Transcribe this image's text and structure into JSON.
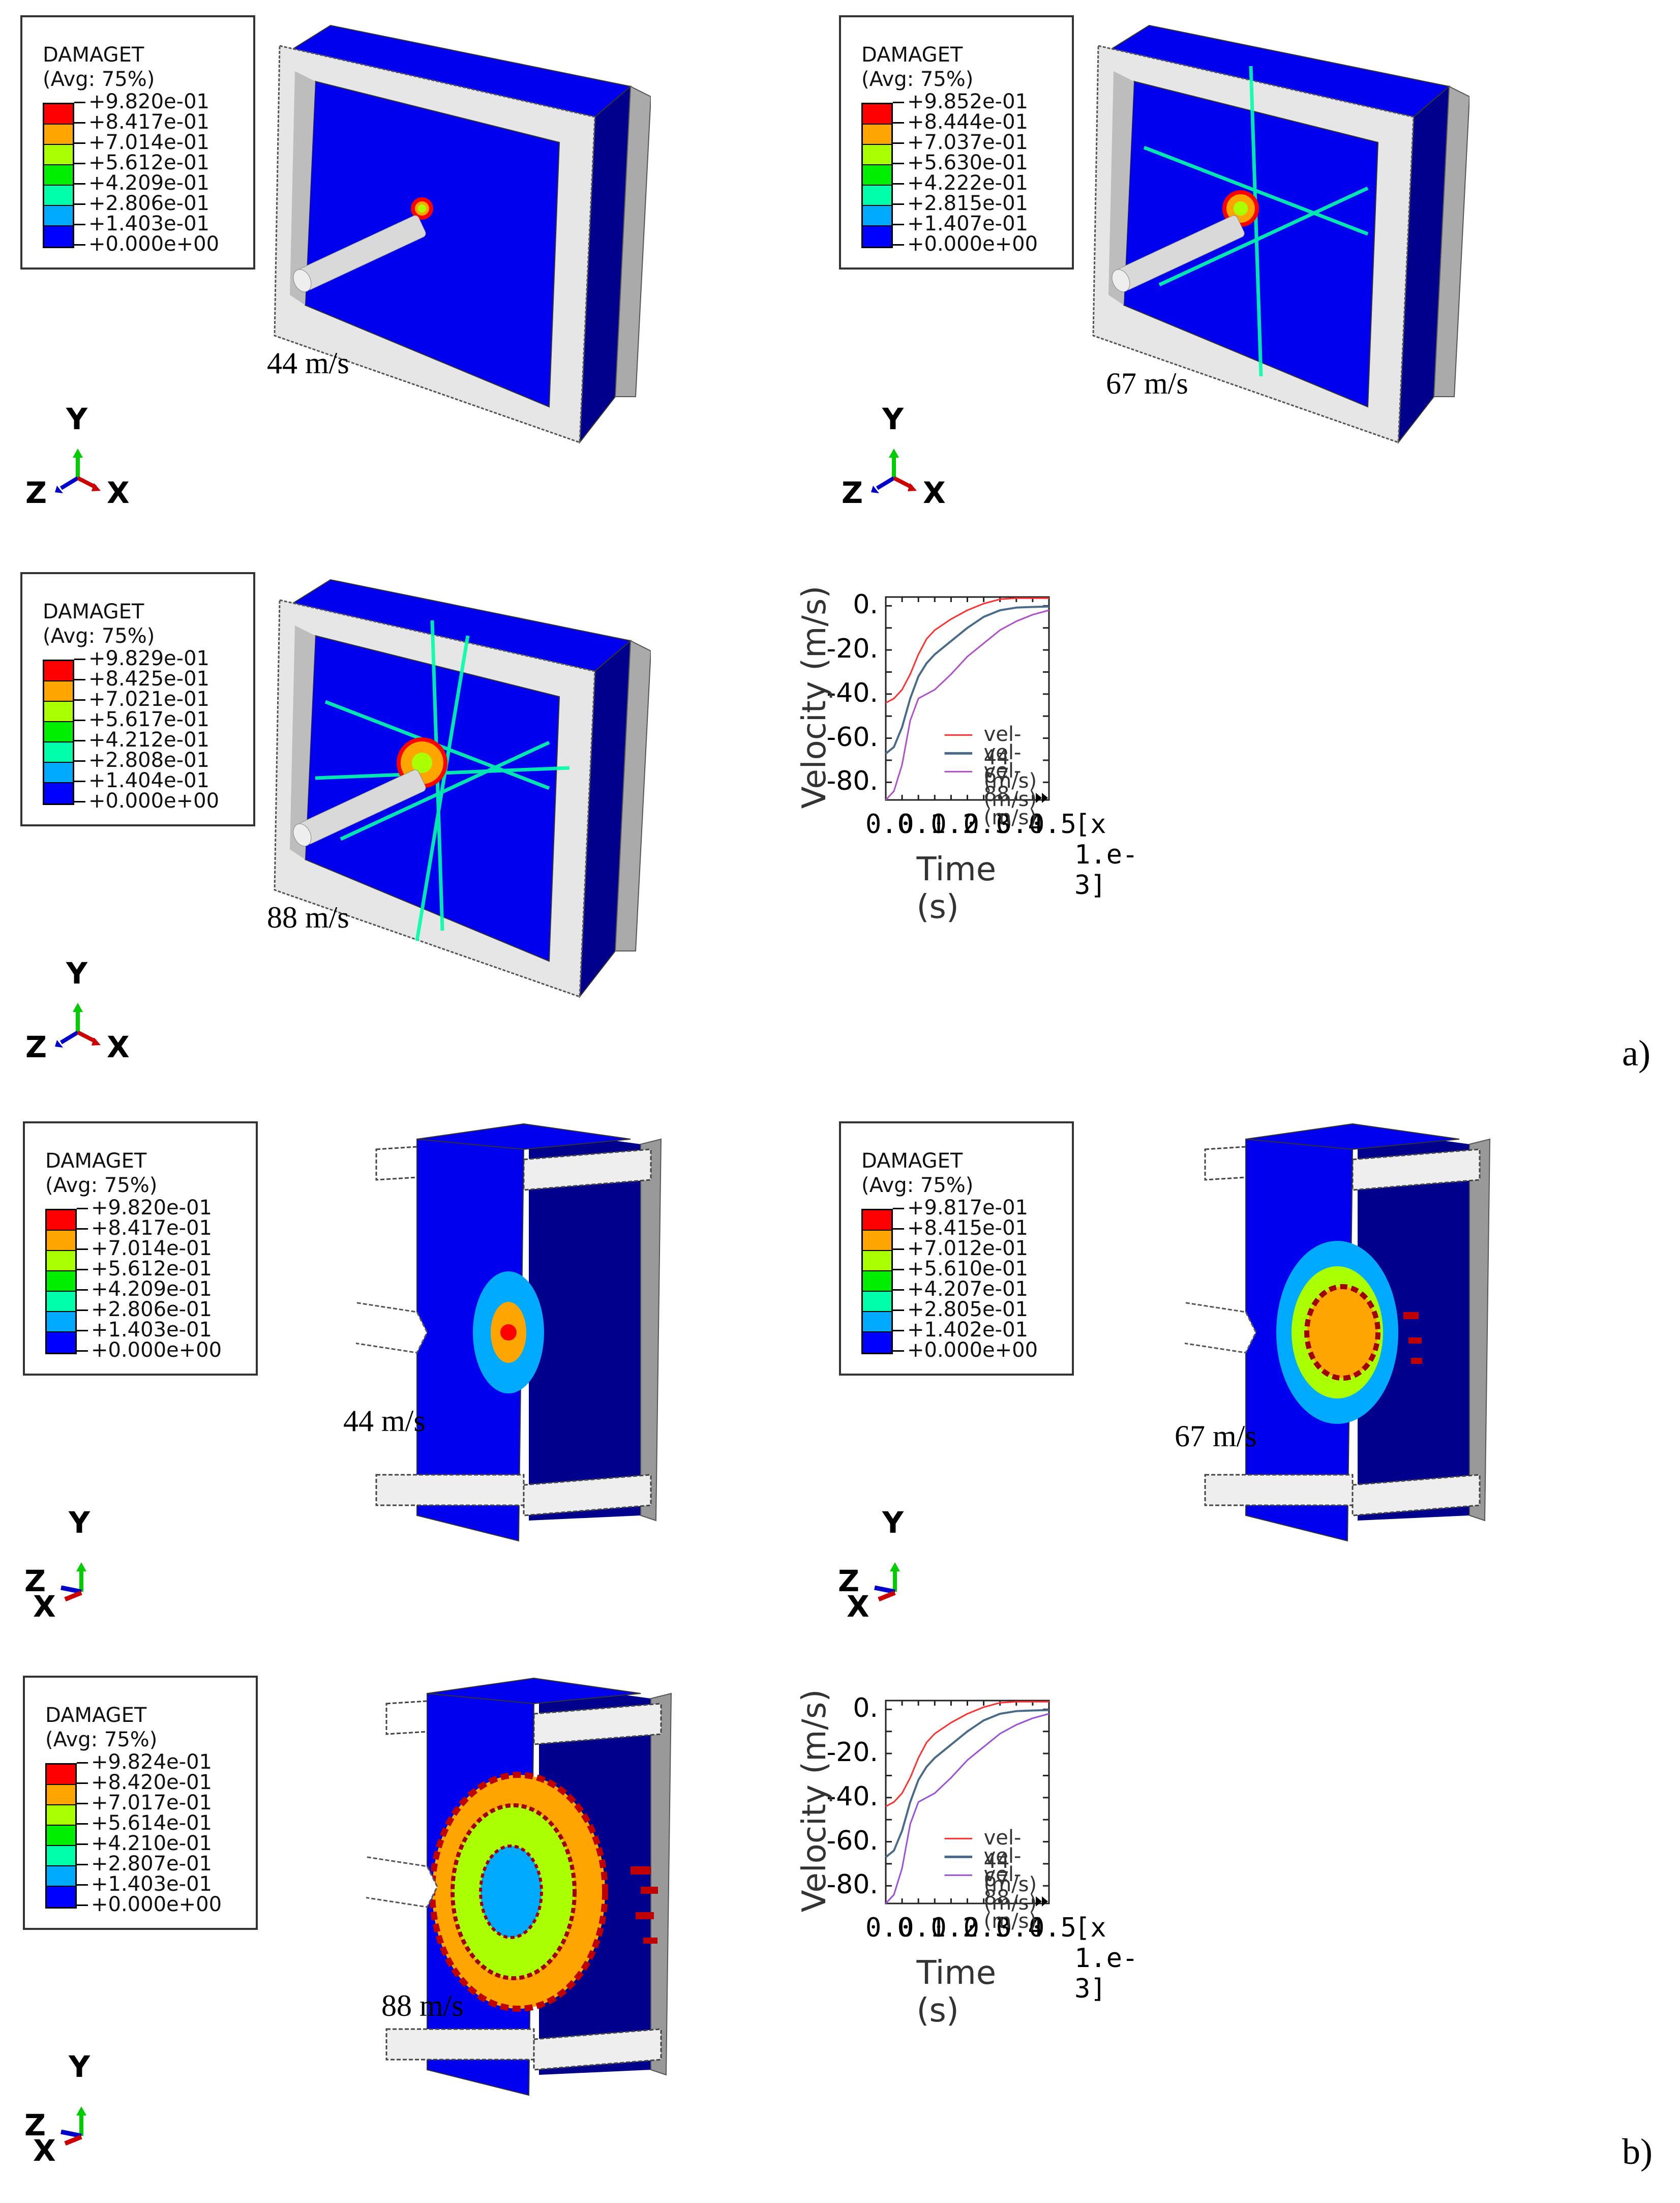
{
  "figure": {
    "subfigure_labels": [
      "a)",
      "b)"
    ]
  },
  "legend_common": {
    "title": "DAMAGET",
    "subtitle": "(Avg: 75%)",
    "colors": [
      "#ff0000",
      "#ffa500",
      "#aaff00",
      "#00ee00",
      "#00ffaa",
      "#00aaff",
      "#0000ff"
    ]
  },
  "panels": [
    {
      "id": "a1",
      "speed_label": "44 m/s",
      "view": "front-isometric",
      "legend": [
        "+9.820e-01",
        "+8.417e-01",
        "+7.014e-01",
        "+5.612e-01",
        "+4.209e-01",
        "+2.806e-01",
        "+1.403e-01",
        "+0.000e+00"
      ],
      "triad": {
        "y": "Y",
        "z": "Z",
        "x": "X"
      }
    },
    {
      "id": "a2",
      "speed_label": "67 m/s",
      "view": "front-isometric",
      "legend": [
        "+9.852e-01",
        "+8.444e-01",
        "+7.037e-01",
        "+5.630e-01",
        "+4.222e-01",
        "+2.815e-01",
        "+1.407e-01",
        "+0.000e+00"
      ],
      "triad": {
        "y": "Y",
        "z": "Z",
        "x": "X"
      }
    },
    {
      "id": "a3",
      "speed_label": "88 m/s",
      "view": "front-isometric",
      "legend": [
        "+9.829e-01",
        "+8.425e-01",
        "+7.021e-01",
        "+5.617e-01",
        "+4.212e-01",
        "+2.808e-01",
        "+1.404e-01",
        "+0.000e+00"
      ],
      "triad": {
        "y": "Y",
        "z": "Z",
        "x": "X"
      }
    },
    {
      "id": "b1",
      "speed_label": "44 m/s",
      "view": "section-cut",
      "legend": [
        "+9.820e-01",
        "+8.417e-01",
        "+7.014e-01",
        "+5.612e-01",
        "+4.209e-01",
        "+2.806e-01",
        "+1.403e-01",
        "+0.000e+00"
      ],
      "triad": {
        "y": "Y",
        "z": "Z",
        "x": "X"
      }
    },
    {
      "id": "b2",
      "speed_label": "67 m/s",
      "view": "section-cut",
      "legend": [
        "+9.817e-01",
        "+8.415e-01",
        "+7.012e-01",
        "+5.610e-01",
        "+4.207e-01",
        "+2.805e-01",
        "+1.402e-01",
        "+0.000e+00"
      ],
      "triad": {
        "y": "Y",
        "z": "Z",
        "x": "X"
      }
    },
    {
      "id": "b3",
      "speed_label": "88 m/s",
      "view": "section-cut",
      "legend": [
        "+9.824e-01",
        "+8.420e-01",
        "+7.017e-01",
        "+5.614e-01",
        "+4.210e-01",
        "+2.807e-01",
        "+1.403e-01",
        "+0.000e+00"
      ],
      "triad": {
        "y": "Y",
        "z": "Z",
        "x": "X"
      }
    }
  ],
  "chart_data": [
    {
      "type": "line",
      "title": "",
      "xlabel": "Time (s)",
      "ylabel": "Velocity (m/s)",
      "x_multiplier_label": "[x 1.e-3]",
      "xlim": [
        0.0,
        0.5
      ],
      "ylim": [
        -88,
        4
      ],
      "x_ticks": [
        "0.0",
        "0.1",
        "0.2",
        "0.3",
        "0.4",
        "0.5"
      ],
      "y_ticks": [
        "0.",
        "-20.",
        "-40.",
        "-60.",
        "-80."
      ],
      "grid": false,
      "legend_position": "lower-right",
      "x": [
        0.0,
        0.025,
        0.05,
        0.075,
        0.1,
        0.125,
        0.15,
        0.2,
        0.25,
        0.3,
        0.35,
        0.4,
        0.45,
        0.5
      ],
      "series": [
        {
          "name": "vel-44 (m/s)",
          "color": "#ff3030",
          "values": [
            -44,
            -42,
            -38,
            -31,
            -22,
            -15,
            -11,
            -6,
            -2,
            1,
            3,
            3.5,
            3.5,
            3.5
          ]
        },
        {
          "name": "vel-67 (m/s)",
          "color": "#4a6a8a",
          "values": [
            -67,
            -64,
            -55,
            -42,
            -32,
            -26,
            -22,
            -16,
            -10,
            -5,
            -2,
            -0.8,
            -0.5,
            -0.3
          ]
        },
        {
          "name": "vel-88 (m/s)",
          "color": "#b050c8",
          "values": [
            -88,
            -84,
            -72,
            -52,
            -42,
            -40,
            -38,
            -31,
            -23,
            -17,
            -11,
            -7,
            -4,
            -2
          ]
        }
      ]
    },
    {
      "type": "line",
      "title": "",
      "xlabel": "Time (s)",
      "ylabel": "Velocity (m/s)",
      "x_multiplier_label": "[x 1.e-3]",
      "xlim": [
        0.0,
        0.5
      ],
      "ylim": [
        -88,
        4
      ],
      "x_ticks": [
        "0.0",
        "0.1",
        "0.2",
        "0.3",
        "0.4",
        "0.5"
      ],
      "y_ticks": [
        "0.",
        "-20.",
        "-40.",
        "-60.",
        "-80."
      ],
      "grid": false,
      "legend_position": "lower-right",
      "x": [
        0.0,
        0.025,
        0.05,
        0.075,
        0.1,
        0.125,
        0.15,
        0.2,
        0.25,
        0.3,
        0.35,
        0.4,
        0.45,
        0.5
      ],
      "series": [
        {
          "name": "vel-44 (m/s)",
          "color": "#ff3030",
          "values": [
            -44,
            -42,
            -38,
            -31,
            -22,
            -15,
            -11,
            -6,
            -2,
            1,
            3,
            3.5,
            3.5,
            3.5
          ]
        },
        {
          "name": "vel-67 (m/s)",
          "color": "#4a6a8a",
          "values": [
            -67,
            -64,
            -55,
            -42,
            -32,
            -26,
            -22,
            -16,
            -10,
            -5,
            -2,
            -0.8,
            -0.5,
            -0.3
          ]
        },
        {
          "name": "vel-88 (m/s)",
          "color": "#9a50d8",
          "values": [
            -88,
            -84,
            -72,
            -52,
            -42,
            -40,
            -38,
            -31,
            -23,
            -17,
            -11,
            -7,
            -4,
            -2
          ]
        }
      ]
    }
  ]
}
